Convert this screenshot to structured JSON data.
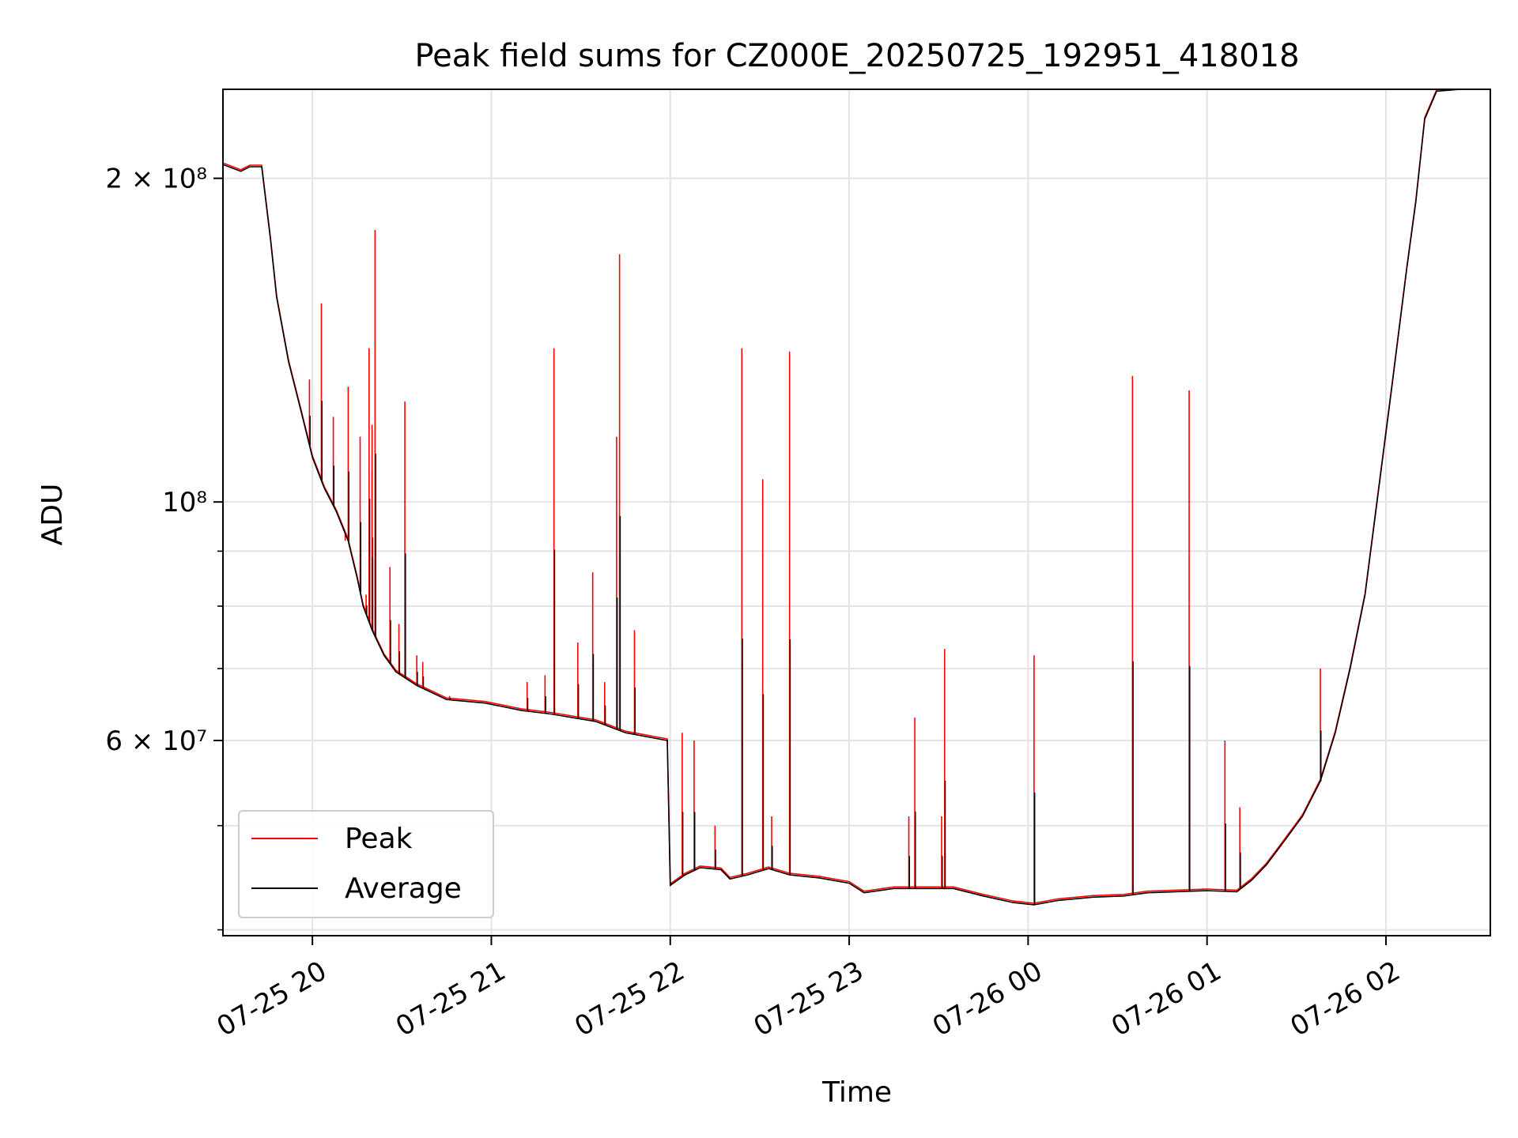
{
  "chart_data": {
    "type": "line",
    "title": "Peak field sums for CZ000E_20250725_192951_418018",
    "xlabel": "Time",
    "ylabel": "ADU",
    "x_scale": "time",
    "y_scale": "log",
    "xlim": [
      "2025-07-25 19:30",
      "2025-07-26 02:35"
    ],
    "ylim": [
      39500000,
      242000000
    ],
    "x_ticks": [
      {
        "value": "2025-07-25 20:00",
        "label": "07-25 20"
      },
      {
        "value": "2025-07-25 21:00",
        "label": "07-25 21"
      },
      {
        "value": "2025-07-25 22:00",
        "label": "07-25 22"
      },
      {
        "value": "2025-07-25 23:00",
        "label": "07-25 23"
      },
      {
        "value": "2025-07-26 00:00",
        "label": "07-26 00"
      },
      {
        "value": "2025-07-26 01:00",
        "label": "07-26 01"
      },
      {
        "value": "2025-07-26 02:00",
        "label": "07-26 02"
      }
    ],
    "y_ticks_major": [
      {
        "value": 200000000,
        "label": "2 × 10⁸"
      },
      {
        "value": 100000000,
        "label": "10⁸"
      },
      {
        "value": 60000000,
        "label": "6 × 10⁷"
      }
    ],
    "y_ticks_minor": [
      40000000,
      50000000,
      70000000,
      80000000,
      90000000
    ],
    "grid": true,
    "legend_position": "lower-left",
    "series": [
      {
        "name": "Peak",
        "color": "#ff0000",
        "spikes": [
          [
            "2025-07-25 19:59",
            130000000
          ],
          [
            "2025-07-25 20:03",
            153000000
          ],
          [
            "2025-07-25 20:07",
            120000000
          ],
          [
            "2025-07-25 20:11",
            92000000
          ],
          [
            "2025-07-25 20:12",
            128000000
          ],
          [
            "2025-07-25 20:16",
            115000000
          ],
          [
            "2025-07-25 20:18",
            82000000
          ],
          [
            "2025-07-25 20:19",
            139000000
          ],
          [
            "2025-07-25 20:20",
            118000000
          ],
          [
            "2025-07-25 20:20",
            107000000
          ],
          [
            "2025-07-25 20:21",
            179000000
          ],
          [
            "2025-07-25 20:26",
            87000000
          ],
          [
            "2025-07-25 20:29",
            77000000
          ],
          [
            "2025-07-25 20:31",
            124000000
          ],
          [
            "2025-07-25 20:35",
            72000000
          ],
          [
            "2025-07-25 20:37",
            71000000
          ],
          [
            "2025-07-25 20:46",
            66000000
          ],
          [
            "2025-07-25 21:12",
            68000000
          ],
          [
            "2025-07-25 21:18",
            69000000
          ],
          [
            "2025-07-25 21:21",
            139000000
          ],
          [
            "2025-07-25 21:29",
            74000000
          ],
          [
            "2025-07-25 21:34",
            86000000
          ],
          [
            "2025-07-25 21:38",
            68000000
          ],
          [
            "2025-07-25 21:42",
            115000000
          ],
          [
            "2025-07-25 21:43",
            170000000
          ],
          [
            "2025-07-25 21:48",
            76000000
          ],
          [
            "2025-07-25 22:04",
            61000000
          ],
          [
            "2025-07-25 22:08",
            60000000
          ],
          [
            "2025-07-25 22:15",
            50000000
          ],
          [
            "2025-07-25 22:24",
            139000000
          ],
          [
            "2025-07-25 22:31",
            105000000
          ],
          [
            "2025-07-25 22:34",
            51000000
          ],
          [
            "2025-07-25 22:40",
            138000000
          ],
          [
            "2025-07-25 23:20",
            51000000
          ],
          [
            "2025-07-25 23:22",
            63000000
          ],
          [
            "2025-07-25 23:31",
            51000000
          ],
          [
            "2025-07-25 23:32",
            73000000
          ],
          [
            "2025-07-26 00:02",
            72000000
          ],
          [
            "2025-07-26 00:35",
            131000000
          ],
          [
            "2025-07-26 00:54",
            127000000
          ],
          [
            "2025-07-26 01:06",
            60000000
          ],
          [
            "2025-07-26 01:11",
            52000000
          ],
          [
            "2025-07-26 01:38",
            70000000
          ]
        ]
      },
      {
        "name": "Average",
        "color": "#000000",
        "points": [
          [
            "2025-07-25 19:30",
            206000000
          ],
          [
            "2025-07-25 19:36",
            203000000
          ],
          [
            "2025-07-25 19:39",
            205000000
          ],
          [
            "2025-07-25 19:43",
            205000000
          ],
          [
            "2025-07-25 19:46",
            175000000
          ],
          [
            "2025-07-25 19:48",
            155000000
          ],
          [
            "2025-07-25 19:52",
            135000000
          ],
          [
            "2025-07-25 19:56",
            122000000
          ],
          [
            "2025-07-25 20:00",
            110000000
          ],
          [
            "2025-07-25 20:04",
            103000000
          ],
          [
            "2025-07-25 20:08",
            98000000
          ],
          [
            "2025-07-25 20:12",
            92000000
          ],
          [
            "2025-07-25 20:15",
            85000000
          ],
          [
            "2025-07-25 20:17",
            80000000
          ],
          [
            "2025-07-25 20:20",
            76000000
          ],
          [
            "2025-07-25 20:24",
            72000000
          ],
          [
            "2025-07-25 20:28",
            69500000
          ],
          [
            "2025-07-25 20:35",
            67500000
          ],
          [
            "2025-07-25 20:45",
            65500000
          ],
          [
            "2025-07-25 20:58",
            65000000
          ],
          [
            "2025-07-25 21:10",
            64000000
          ],
          [
            "2025-07-25 21:20",
            63500000
          ],
          [
            "2025-07-25 21:35",
            62500000
          ],
          [
            "2025-07-25 21:45",
            61000000
          ],
          [
            "2025-07-25 21:59",
            60000000
          ],
          [
            "2025-07-25 22:00",
            44000000
          ],
          [
            "2025-07-25 22:05",
            45000000
          ],
          [
            "2025-07-25 22:10",
            45700000
          ],
          [
            "2025-07-25 22:17",
            45500000
          ],
          [
            "2025-07-25 22:20",
            44600000
          ],
          [
            "2025-07-25 22:26",
            45000000
          ],
          [
            "2025-07-25 22:33",
            45600000
          ],
          [
            "2025-07-25 22:40",
            45000000
          ],
          [
            "2025-07-25 22:50",
            44700000
          ],
          [
            "2025-07-25 23:00",
            44200000
          ],
          [
            "2025-07-25 23:05",
            43300000
          ],
          [
            "2025-07-25 23:15",
            43700000
          ],
          [
            "2025-07-25 23:25",
            43700000
          ],
          [
            "2025-07-25 23:35",
            43700000
          ],
          [
            "2025-07-25 23:45",
            43000000
          ],
          [
            "2025-07-25 23:55",
            42400000
          ],
          [
            "2025-07-26 00:02",
            42200000
          ],
          [
            "2025-07-26 00:10",
            42600000
          ],
          [
            "2025-07-26 00:22",
            42900000
          ],
          [
            "2025-07-26 00:32",
            43000000
          ],
          [
            "2025-07-26 00:40",
            43300000
          ],
          [
            "2025-07-26 01:00",
            43500000
          ],
          [
            "2025-07-26 01:10",
            43400000
          ],
          [
            "2025-07-26 01:15",
            44500000
          ],
          [
            "2025-07-26 01:20",
            46000000
          ],
          [
            "2025-07-26 01:25",
            48000000
          ],
          [
            "2025-07-26 01:32",
            51000000
          ],
          [
            "2025-07-26 01:38",
            55000000
          ],
          [
            "2025-07-26 01:43",
            61000000
          ],
          [
            "2025-07-26 01:48",
            70000000
          ],
          [
            "2025-07-26 01:53",
            82000000
          ],
          [
            "2025-07-26 01:57",
            100000000
          ],
          [
            "2025-07-26 02:02",
            128000000
          ],
          [
            "2025-07-26 02:07",
            165000000
          ],
          [
            "2025-07-26 02:10",
            190000000
          ],
          [
            "2025-07-26 02:13",
            227000000
          ],
          [
            "2025-07-26 02:17",
            241000000
          ],
          [
            "2025-07-26 02:25",
            242000000
          ],
          [
            "2025-07-26 02:35",
            242000000
          ]
        ]
      }
    ]
  }
}
